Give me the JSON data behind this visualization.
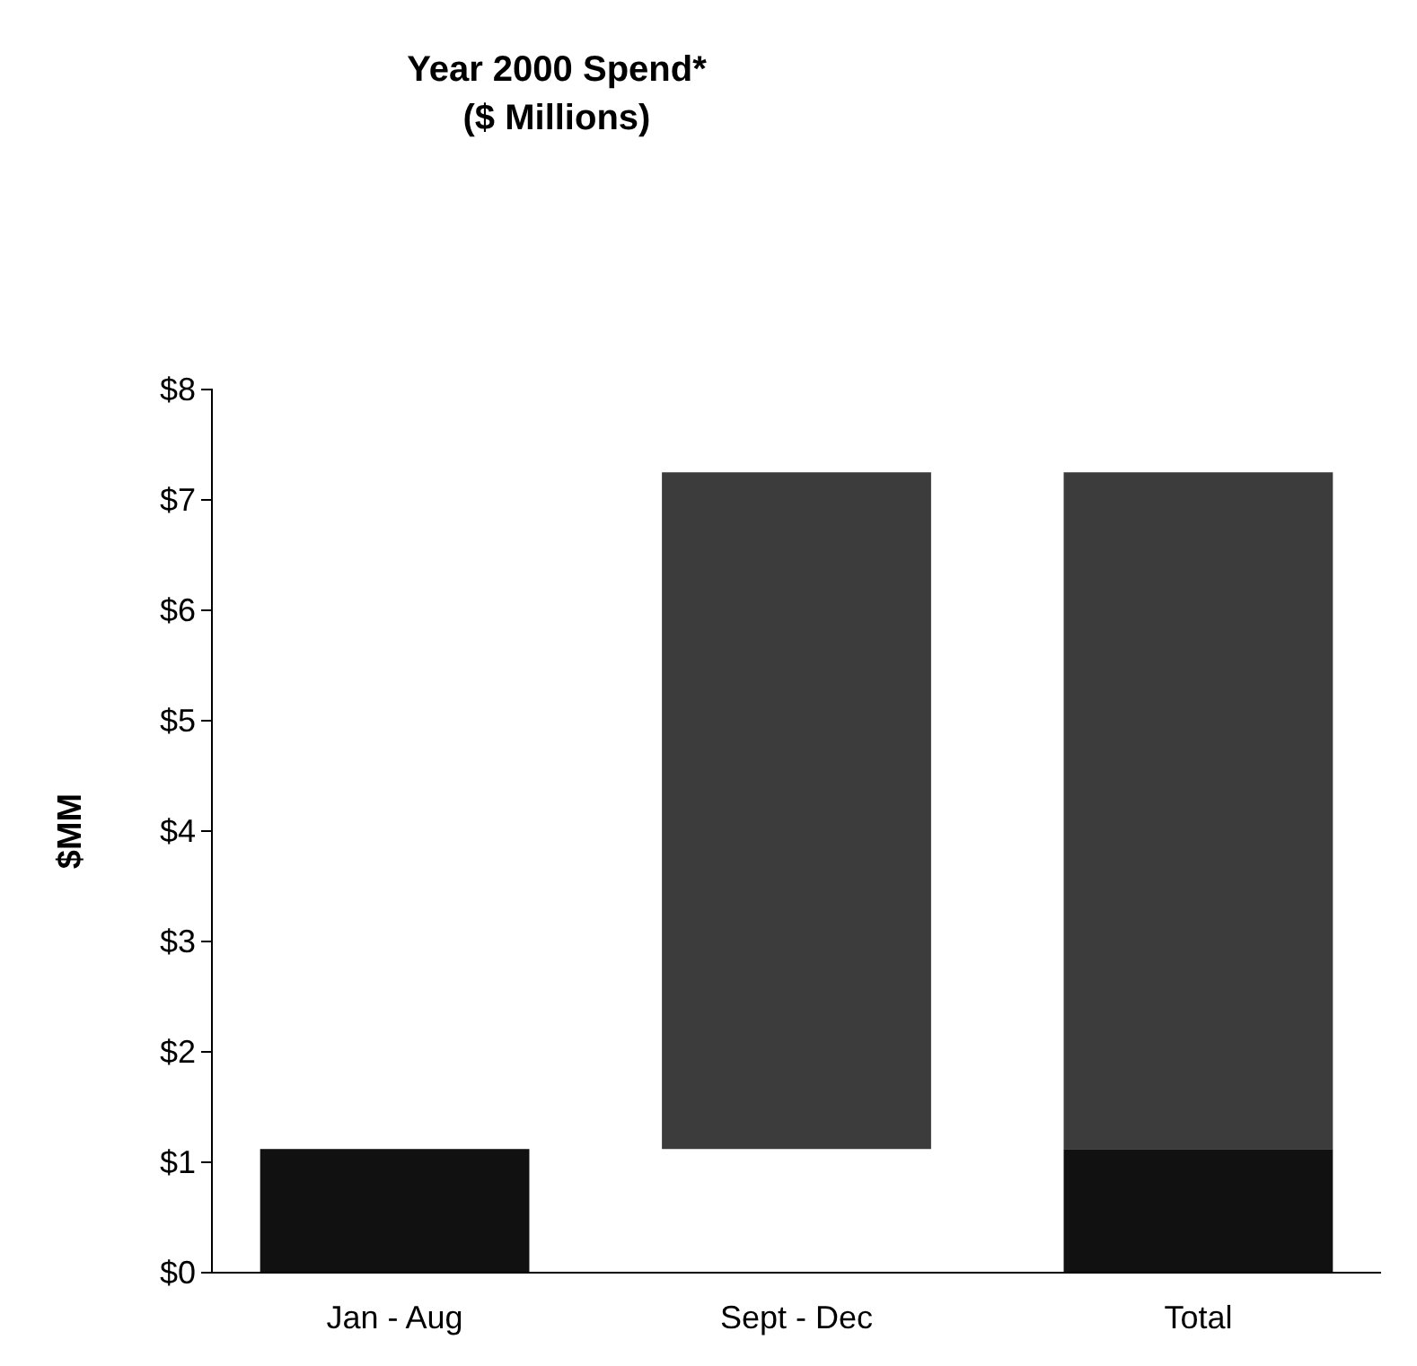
{
  "chart_data": {
    "type": "bar",
    "title": "Year 2000 Spend*",
    "subtitle": "($ Millions)",
    "ylabel": "$MM",
    "categories": [
      "Jan - Aug",
      "Sept  - Dec",
      "Total"
    ],
    "stacked": true,
    "series": [
      {
        "color": "#111111",
        "values": [
          1.12,
          null,
          1.12
        ]
      },
      {
        "color": "#3c3c3c",
        "values": [
          null,
          6.13,
          6.13
        ],
        "base": [
          null,
          1.12,
          null
        ]
      }
    ],
    "ylim": [
      0,
      8
    ],
    "yticks": [
      {
        "value": 0,
        "label": "$0"
      },
      {
        "value": 1,
        "label": "$1"
      },
      {
        "value": 2,
        "label": "$2"
      },
      {
        "value": 3,
        "label": "$3"
      },
      {
        "value": 4,
        "label": "$4"
      },
      {
        "value": 5,
        "label": "$5"
      },
      {
        "value": 6,
        "label": "$6"
      },
      {
        "value": 7,
        "label": "$7"
      },
      {
        "value": 8,
        "label": "$8"
      }
    ],
    "grid": false
  }
}
